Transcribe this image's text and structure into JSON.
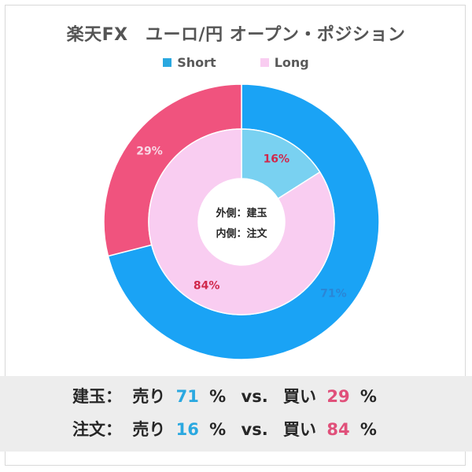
{
  "title": "楽天FX　ユーロ/円 オープン・ポジション",
  "legend": {
    "short_label": "Short",
    "long_label": "Long"
  },
  "colors": {
    "short": "#1aa3f5",
    "long": "#f0537e",
    "inner_short": "#79d1f1",
    "inner_long": "#f9cdf1",
    "short_text": "#2aa8e0",
    "long_text": "#e0507a",
    "inner_label": "#d0284c"
  },
  "center": {
    "line1": "外側：建玉",
    "line2": "内側：注文"
  },
  "chart_data": [
    {
      "type": "pie",
      "ring": "outer",
      "series": [
        {
          "name": "Short",
          "value": 71,
          "label": "71%"
        },
        {
          "name": "Long",
          "value": 29,
          "label": "29%"
        }
      ]
    },
    {
      "type": "pie",
      "ring": "inner",
      "series": [
        {
          "name": "Short",
          "value": 16,
          "label": "16%"
        },
        {
          "name": "Long",
          "value": 84,
          "label": "84%"
        }
      ]
    }
  ],
  "summary": {
    "row1": {
      "label": "建玉：",
      "sell_label": "売り",
      "sell_value": "71",
      "pct1": "%",
      "vs": "vs.",
      "buy_label": "買い",
      "buy_value": "29",
      "pct2": "%"
    },
    "row2": {
      "label": "注文：",
      "sell_label": "売り",
      "sell_value": "16",
      "pct1": "%",
      "vs": "vs.",
      "buy_label": "買い",
      "buy_value": "84",
      "pct2": "%"
    }
  }
}
